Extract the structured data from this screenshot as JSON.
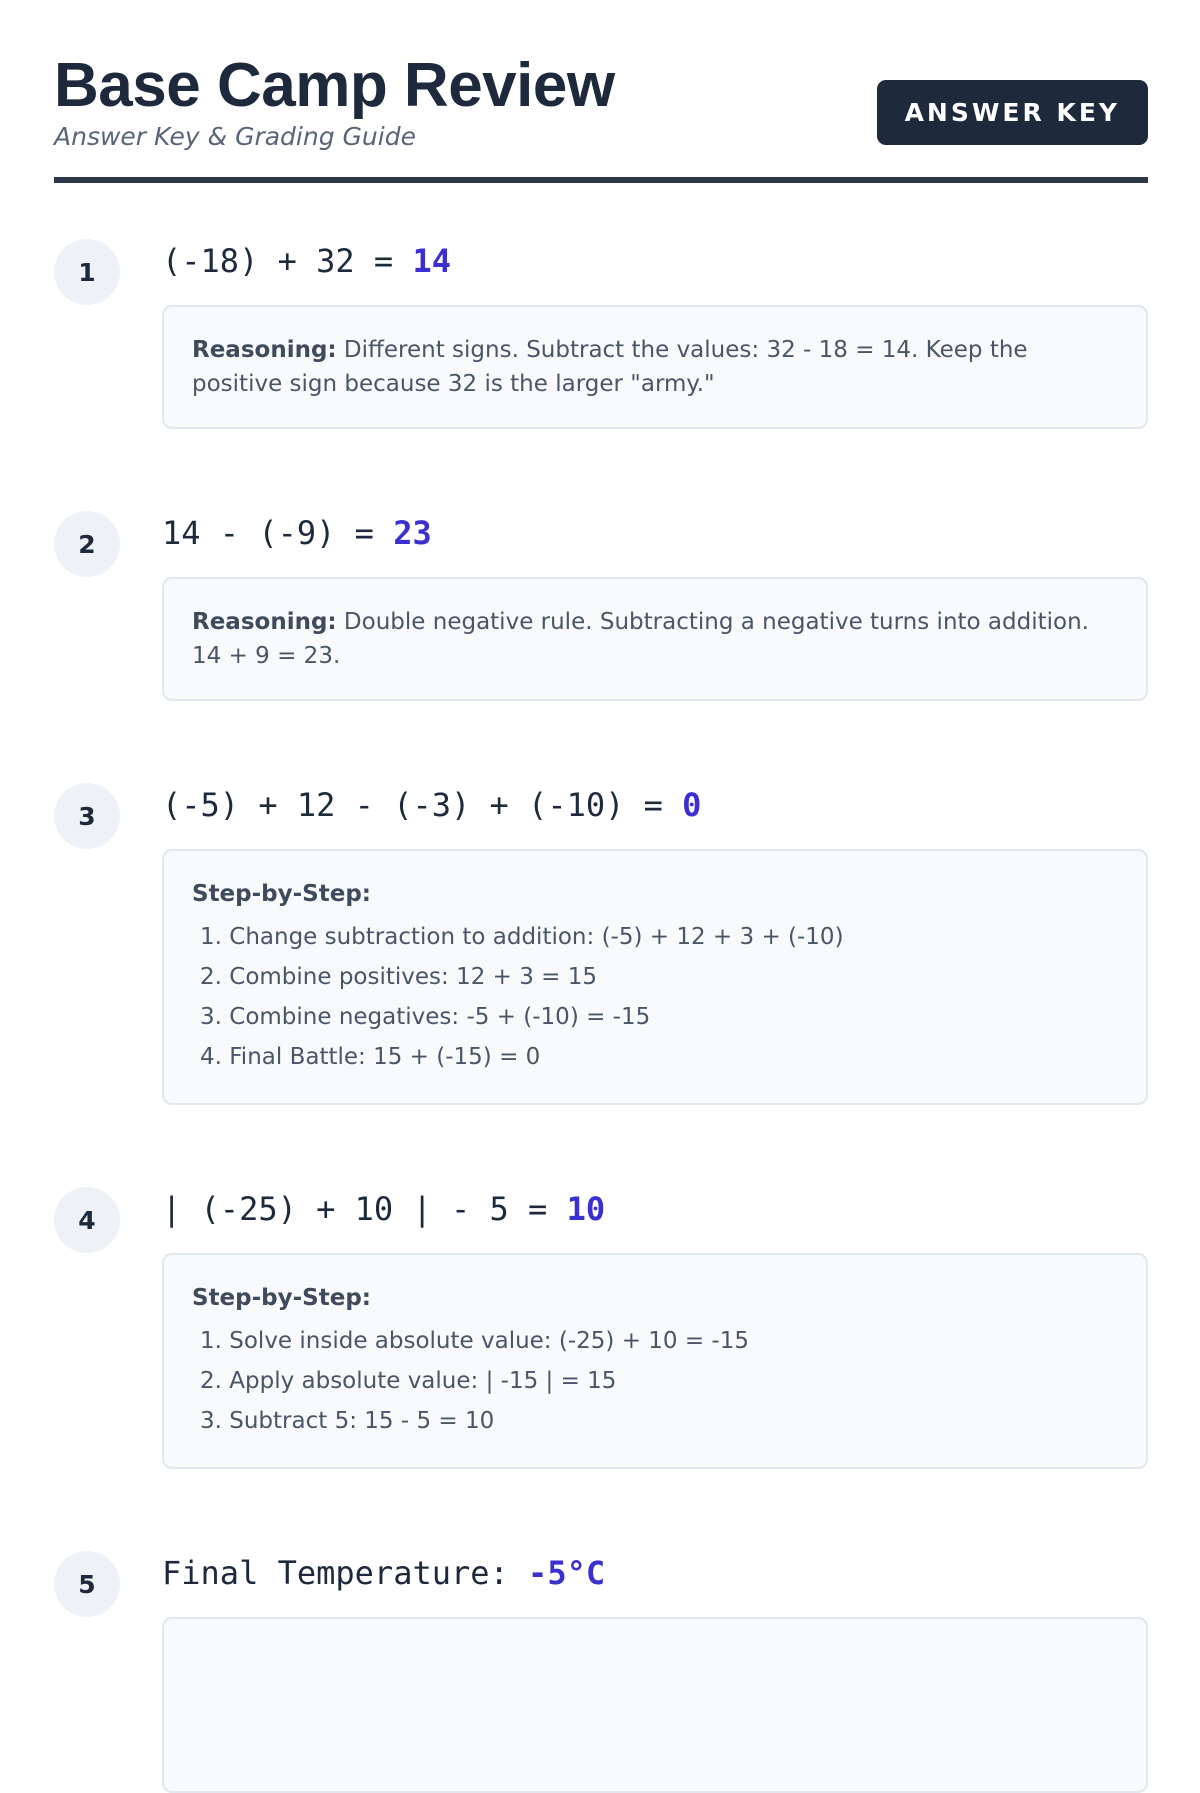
{
  "header": {
    "title": "Base Camp Review",
    "subtitle": "Answer Key & Grading Guide",
    "badge": "ANSWER KEY"
  },
  "colors": {
    "accent": "#3b2fd1",
    "dark": "#1e293b"
  },
  "problems": [
    {
      "number": "1",
      "equation": "(-18) + 32 = ",
      "answer": "14",
      "label": "Reasoning:",
      "text": " Different signs. Subtract the values: 32 - 18 = 14. Keep the positive sign because 32 is the larger \"army.\""
    },
    {
      "number": "2",
      "equation": "14 - (-9) = ",
      "answer": "23",
      "label": "Reasoning:",
      "text": " Double negative rule. Subtracting a negative turns into addition. 14 + 9 = 23."
    },
    {
      "number": "3",
      "equation": "(-5) + 12 - (-3) + (-10) = ",
      "answer": "0",
      "label": "Step-by-Step:",
      "steps": [
        "1. Change subtraction to addition: (-5) + 12 + 3 + (-10)",
        "2. Combine positives: 12 + 3 = 15",
        "3. Combine negatives: -5 + (-10) = -15",
        "4. Final Battle: 15 + (-15) = 0"
      ]
    },
    {
      "number": "4",
      "equation": "| (-25) + 10 | - 5 = ",
      "answer": "10",
      "label": "Step-by-Step:",
      "steps": [
        "1. Solve inside absolute value: (-25) + 10 = -15",
        "2. Apply absolute value: | -15 | = 15",
        "3. Subtract 5: 15 - 5 = 10"
      ]
    },
    {
      "number": "5",
      "equation": "Final Temperature: ",
      "answer": "-5°C"
    }
  ]
}
